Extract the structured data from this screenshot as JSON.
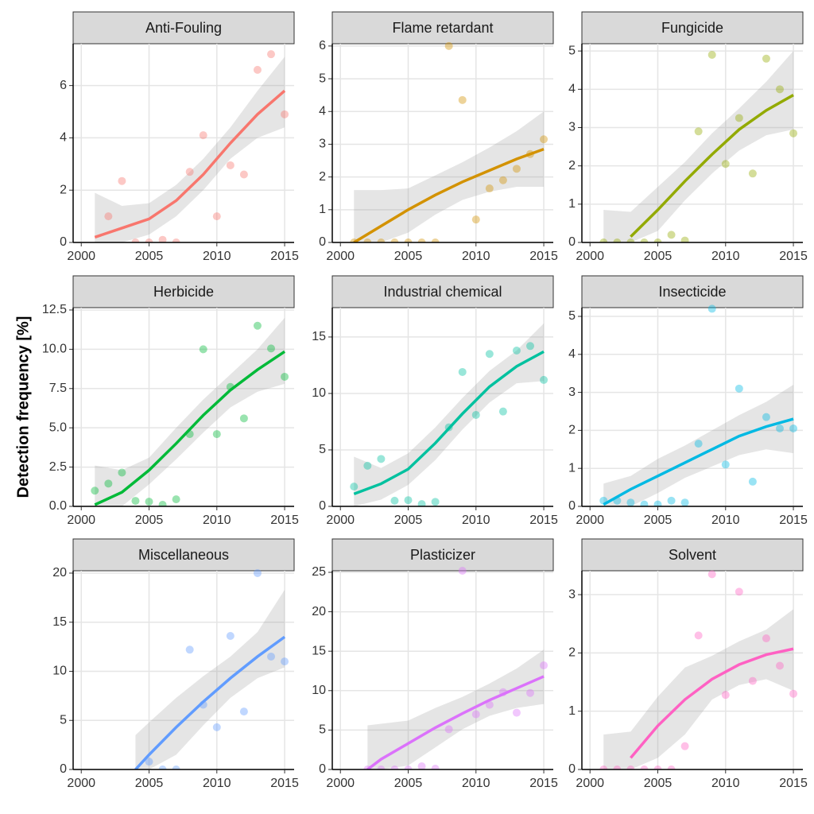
{
  "ylabel": "Detection frequency [%]",
  "chart_data": [
    {
      "type": "scatter",
      "title": "Anti-Fouling",
      "color": "#F8766D",
      "x": [
        2002,
        2003,
        2004,
        2005,
        2006,
        2007,
        2008,
        2009,
        2010,
        2011,
        2012,
        2013,
        2014,
        2015
      ],
      "values": [
        1.0,
        2.35,
        0,
        0,
        0.1,
        0,
        2.7,
        4.1,
        1.0,
        2.95,
        2.6,
        6.6,
        7.2,
        4.9
      ],
      "fit": {
        "x": [
          2001,
          2003,
          2005,
          2007,
          2009,
          2011,
          2013,
          2015
        ],
        "values": [
          0.2,
          0.55,
          0.9,
          1.6,
          2.6,
          3.8,
          4.9,
          5.8
        ],
        "lower": [
          0,
          0,
          0.3,
          1.0,
          2.0,
          3.2,
          4.0,
          4.4
        ],
        "upper": [
          1.9,
          1.4,
          1.5,
          2.2,
          3.2,
          4.4,
          5.8,
          7.1
        ]
      },
      "xlim": [
        1999.4,
        2015.7
      ],
      "xticks": [
        2000,
        2005,
        2010,
        2015
      ],
      "ylim": [
        0,
        7.6
      ],
      "yticks": [
        0,
        2,
        4,
        6
      ]
    },
    {
      "type": "scatter",
      "title": "Flame retardant",
      "color": "#D39200",
      "x": [
        2001,
        2002,
        2003,
        2004,
        2005,
        2006,
        2007,
        2008,
        2009,
        2010,
        2011,
        2012,
        2013,
        2014,
        2015
      ],
      "values": [
        0,
        0,
        0,
        0,
        0,
        0,
        0,
        6.0,
        4.35,
        0.7,
        1.65,
        1.9,
        2.25,
        2.7,
        3.15
      ],
      "fit": {
        "x": [
          2001,
          2003,
          2005,
          2007,
          2009,
          2011,
          2013,
          2015
        ],
        "values": [
          0,
          0.5,
          1.0,
          1.45,
          1.85,
          2.2,
          2.55,
          2.85
        ],
        "lower": [
          0,
          0,
          0.3,
          0.85,
          1.3,
          1.55,
          1.7,
          1.7
        ],
        "upper": [
          1.6,
          1.6,
          1.65,
          2.05,
          2.45,
          2.9,
          3.4,
          4.0
        ]
      },
      "xlim": [
        1999.4,
        2015.7
      ],
      "xticks": [
        2000,
        2005,
        2010,
        2015
      ],
      "ylim": [
        0,
        6.07
      ],
      "yticks": [
        0,
        1,
        2,
        3,
        4,
        5,
        6
      ]
    },
    {
      "type": "scatter",
      "title": "Fungicide",
      "color": "#93AA00",
      "x": [
        2001,
        2002,
        2003,
        2004,
        2005,
        2006,
        2007,
        2008,
        2009,
        2010,
        2011,
        2012,
        2013,
        2014,
        2015
      ],
      "values": [
        0,
        0,
        0,
        0,
        0,
        0.2,
        0.05,
        2.9,
        4.9,
        2.05,
        3.25,
        1.8,
        4.8,
        4.0,
        2.85
      ],
      "fit": {
        "x": [
          2001,
          2003,
          2005,
          2007,
          2009,
          2011,
          2013,
          2015
        ],
        "values": [
          null,
          0.15,
          0.85,
          1.6,
          2.3,
          2.95,
          3.45,
          3.85
        ],
        "lower": [
          0,
          0,
          0.3,
          1.1,
          1.8,
          2.4,
          2.8,
          2.95
        ],
        "upper": [
          0.85,
          0.8,
          1.45,
          2.1,
          2.85,
          3.5,
          4.2,
          5.0
        ]
      },
      "xlim": [
        1999.4,
        2015.7
      ],
      "xticks": [
        2000,
        2005,
        2010,
        2015
      ],
      "ylim": [
        0,
        5.19
      ],
      "yticks": [
        0,
        1,
        2,
        3,
        4,
        5
      ]
    },
    {
      "type": "scatter",
      "title": "Herbicide",
      "color": "#00BA38",
      "x": [
        2001,
        2002,
        2003,
        2004,
        2005,
        2006,
        2007,
        2008,
        2009,
        2010,
        2011,
        2012,
        2013,
        2014,
        2015
      ],
      "values": [
        1.0,
        1.45,
        2.15,
        0.35,
        0.3,
        0.1,
        0.45,
        4.6,
        10.0,
        4.6,
        7.6,
        5.6,
        11.5,
        10.05,
        8.25
      ],
      "fit": {
        "x": [
          2001,
          2003,
          2005,
          2007,
          2009,
          2011,
          2013,
          2015
        ],
        "values": [
          0.1,
          0.9,
          2.3,
          4.0,
          5.8,
          7.4,
          8.7,
          9.85
        ],
        "lower": [
          0,
          0,
          1.4,
          3.0,
          4.7,
          6.3,
          7.3,
          7.8
        ],
        "upper": [
          2.6,
          2.3,
          3.1,
          5.0,
          6.8,
          8.4,
          10.0,
          12.0
        ]
      },
      "xlim": [
        1999.4,
        2015.7
      ],
      "xticks": [
        2000,
        2005,
        2010,
        2015
      ],
      "ylim": [
        0,
        12.65
      ],
      "yticks": [
        {
          "value": 0,
          "label": "0.0"
        },
        2.5,
        {
          "value": 5,
          "label": "5.0"
        },
        7.5,
        {
          "value": 10,
          "label": "10.0"
        },
        12.5
      ]
    },
    {
      "type": "scatter",
      "title": "Industrial chemical",
      "color": "#00C19F",
      "x": [
        2001,
        2002,
        2003,
        2004,
        2005,
        2006,
        2007,
        2008,
        2009,
        2010,
        2011,
        2012,
        2013,
        2014,
        2015
      ],
      "values": [
        1.75,
        3.6,
        4.2,
        0.5,
        0.55,
        0.2,
        0.4,
        7.0,
        11.9,
        8.1,
        13.5,
        8.4,
        13.8,
        14.2,
        11.2
      ],
      "fit": {
        "x": [
          2001,
          2003,
          2005,
          2007,
          2009,
          2011,
          2013,
          2015
        ],
        "values": [
          1.1,
          2.0,
          3.3,
          5.6,
          8.2,
          10.6,
          12.4,
          13.7
        ],
        "lower": [
          0,
          0.6,
          1.9,
          4.1,
          6.8,
          9.2,
          10.9,
          11.1
        ],
        "upper": [
          4.4,
          3.4,
          4.7,
          7.0,
          9.6,
          12.0,
          13.8,
          16.2
        ]
      },
      "xlim": [
        1999.4,
        2015.7
      ],
      "xticks": [
        2000,
        2005,
        2010,
        2015
      ],
      "ylim": [
        0,
        17.6
      ],
      "yticks": [
        0,
        5,
        10,
        15
      ]
    },
    {
      "type": "scatter",
      "title": "Insecticide",
      "color": "#00B9E3",
      "x": [
        2001,
        2002,
        2003,
        2004,
        2005,
        2006,
        2007,
        2008,
        2009,
        2010,
        2011,
        2012,
        2013,
        2014,
        2015
      ],
      "values": [
        0.15,
        0.15,
        0.1,
        0.05,
        0.05,
        0.15,
        0.1,
        1.65,
        5.2,
        1.1,
        3.1,
        0.65,
        2.35,
        2.05,
        2.05
      ],
      "fit": {
        "x": [
          2001,
          2003,
          2005,
          2007,
          2009,
          2011,
          2013,
          2015
        ],
        "values": [
          0.05,
          0.45,
          0.8,
          1.15,
          1.5,
          1.85,
          2.1,
          2.3
        ],
        "lower": [
          0,
          0,
          0.35,
          0.75,
          1.05,
          1.35,
          1.5,
          1.4
        ],
        "upper": [
          0.6,
          0.8,
          1.25,
          1.6,
          2.0,
          2.4,
          2.75,
          3.2
        ]
      },
      "xlim": [
        1999.4,
        2015.7
      ],
      "xticks": [
        2000,
        2005,
        2010,
        2015
      ],
      "ylim": [
        0,
        5.23
      ],
      "yticks": [
        0,
        1,
        2,
        3,
        4,
        5
      ]
    },
    {
      "type": "scatter",
      "title": "Miscellaneous",
      "color": "#619CFF",
      "x": [
        2005,
        2006,
        2007,
        2008,
        2009,
        2010,
        2011,
        2012,
        2013,
        2014,
        2015
      ],
      "values": [
        0.8,
        0,
        0,
        12.2,
        6.6,
        4.3,
        13.6,
        5.9,
        20,
        11.5,
        11.0
      ],
      "fit": {
        "x": [
          2004,
          2005,
          2007,
          2009,
          2011,
          2013,
          2015
        ],
        "values": [
          0,
          1.5,
          4.3,
          6.9,
          9.3,
          11.5,
          13.5
        ],
        "lower": [
          0,
          0,
          1.5,
          4.5,
          7.3,
          9.3,
          10.4
        ],
        "upper": [
          3.5,
          4.8,
          7.3,
          9.5,
          11.5,
          14.0,
          18.3
        ]
      },
      "xlim": [
        1999.4,
        2015.7
      ],
      "xticks": [
        2000,
        2005,
        2010,
        2015
      ],
      "ylim": [
        0,
        20.24
      ],
      "yticks": [
        0,
        5,
        10,
        15,
        20
      ]
    },
    {
      "type": "scatter",
      "title": "Plasticizer",
      "color": "#DB72FB",
      "x": [
        2002,
        2003,
        2004,
        2005,
        2006,
        2007,
        2008,
        2009,
        2010,
        2011,
        2012,
        2013,
        2014,
        2015
      ],
      "values": [
        0,
        0,
        0,
        0,
        0.4,
        0.1,
        5.1,
        25.2,
        7.0,
        8.2,
        9.8,
        7.2,
        9.7,
        13.2
      ],
      "fit": {
        "x": [
          2002,
          2003,
          2005,
          2007,
          2009,
          2011,
          2013,
          2015
        ],
        "values": [
          0,
          1.3,
          3.3,
          5.3,
          7.1,
          8.8,
          10.3,
          11.8
        ],
        "lower": [
          0,
          0,
          0.5,
          2.8,
          5.1,
          6.8,
          7.8,
          8.3
        ],
        "upper": [
          5.6,
          5.8,
          6.2,
          7.8,
          9.2,
          10.9,
          12.8,
          15.2
        ]
      },
      "xlim": [
        1999.4,
        2015.7
      ],
      "xticks": [
        2000,
        2005,
        2010,
        2015
      ],
      "ylim": [
        0,
        25.2
      ],
      "yticks": [
        0,
        5,
        10,
        15,
        20,
        25
      ]
    },
    {
      "type": "scatter",
      "title": "Solvent",
      "color": "#FF61C3",
      "x": [
        2001,
        2002,
        2003,
        2004,
        2005,
        2006,
        2007,
        2008,
        2009,
        2010,
        2011,
        2012,
        2013,
        2014,
        2015
      ],
      "values": [
        0,
        0,
        0,
        0,
        0,
        0,
        0.4,
        2.3,
        3.35,
        1.28,
        3.05,
        1.52,
        2.25,
        1.78,
        1.3
      ],
      "fit": {
        "x": [
          2001,
          2003,
          2005,
          2007,
          2009,
          2011,
          2013,
          2015
        ],
        "values": [
          null,
          0.2,
          0.75,
          1.2,
          1.55,
          1.8,
          1.97,
          2.07
        ],
        "lower": [
          0,
          0,
          0.2,
          0.6,
          1.2,
          1.45,
          1.55,
          1.35
        ],
        "upper": [
          0.6,
          0.65,
          1.25,
          1.75,
          1.95,
          2.2,
          2.4,
          2.75
        ]
      },
      "xlim": [
        1999.4,
        2015.7
      ],
      "xticks": [
        2000,
        2005,
        2010,
        2015
      ],
      "ylim": [
        0,
        3.41
      ],
      "yticks": [
        0,
        1,
        2,
        3
      ]
    }
  ]
}
